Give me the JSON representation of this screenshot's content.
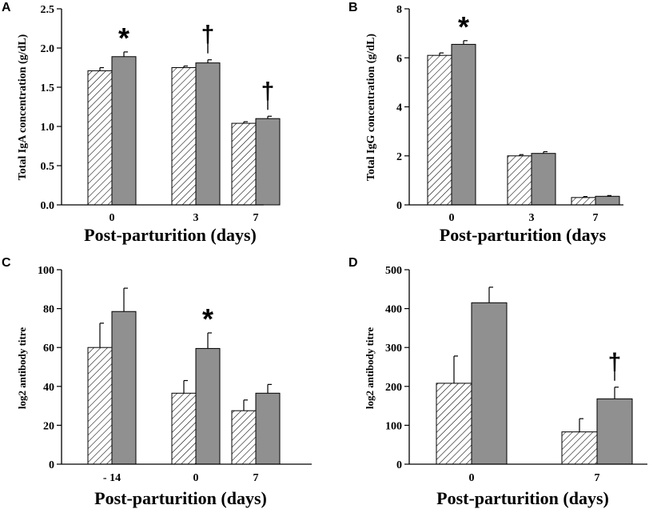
{
  "colors": {
    "series2": "#909090",
    "axis": "#000000",
    "hatch": "#000000"
  },
  "chart_data": [
    {
      "panel": "A",
      "type": "bar",
      "categories": [
        "0",
        "3",
        "7"
      ],
      "ylabel": "Total IgA concentration (g/dL)",
      "xlabel": "Post-parturition (days)",
      "ylim": [
        0,
        2.5
      ],
      "yticks": [
        "0.0",
        "0.5",
        "1.0",
        "1.5",
        "2.0",
        "2.5"
      ],
      "series": [
        {
          "name": "hatched",
          "values": [
            1.71,
            1.75,
            1.04
          ],
          "errors": [
            0.04,
            0.02,
            0.02
          ]
        },
        {
          "name": "grey",
          "values": [
            1.89,
            1.81,
            1.1
          ],
          "errors": [
            0.06,
            0.04,
            0.03
          ]
        }
      ],
      "annotations": [
        {
          "category": "0",
          "symbol": "*"
        },
        {
          "category": "3",
          "symbol": "†"
        },
        {
          "category": "7",
          "symbol": "†"
        }
      ]
    },
    {
      "panel": "B",
      "type": "bar",
      "categories": [
        "0",
        "3",
        "7"
      ],
      "ylabel": "Total IgG concentration (g/dL)",
      "xlabel": "Post-parturition (days",
      "ylim": [
        0,
        8
      ],
      "yticks": [
        "0",
        "2",
        "4",
        "6",
        "8"
      ],
      "series": [
        {
          "name": "hatched",
          "values": [
            6.1,
            2.0,
            0.3
          ],
          "errors": [
            0.1,
            0.05,
            0.04
          ]
        },
        {
          "name": "grey",
          "values": [
            6.55,
            2.1,
            0.35
          ],
          "errors": [
            0.15,
            0.07,
            0.03
          ]
        }
      ],
      "annotations": [
        {
          "category": "0",
          "symbol": "*"
        }
      ]
    },
    {
      "panel": "C",
      "type": "bar",
      "categories": [
        "- 14",
        "0",
        "7"
      ],
      "ylabel": "log2 antibody titre",
      "xlabel": "Post-parturition (days)",
      "ylim": [
        0,
        100
      ],
      "yticks": [
        "0",
        "20",
        "40",
        "60",
        "80",
        "100"
      ],
      "series": [
        {
          "name": "hatched",
          "values": [
            60,
            36.5,
            27.5
          ],
          "errors": [
            12.5,
            6.5,
            5.5
          ]
        },
        {
          "name": "grey",
          "values": [
            78.5,
            59.5,
            36.5
          ],
          "errors": [
            12,
            8,
            4.5
          ]
        }
      ],
      "annotations": [
        {
          "category": "0",
          "symbol": "*"
        }
      ]
    },
    {
      "panel": "D",
      "type": "bar",
      "categories": [
        "0",
        "7"
      ],
      "ylabel": "log2 antibody titre",
      "xlabel": "Post-parturition (days)",
      "ylim": [
        0,
        500
      ],
      "yticks": [
        "0",
        "100",
        "200",
        "300",
        "400",
        "500"
      ],
      "series": [
        {
          "name": "hatched",
          "values": [
            208,
            83
          ],
          "errors": [
            70,
            34
          ]
        },
        {
          "name": "grey",
          "values": [
            415,
            168
          ],
          "errors": [
            40,
            30
          ]
        }
      ],
      "annotations": [
        {
          "category": "7",
          "symbol": "†"
        }
      ]
    }
  ]
}
